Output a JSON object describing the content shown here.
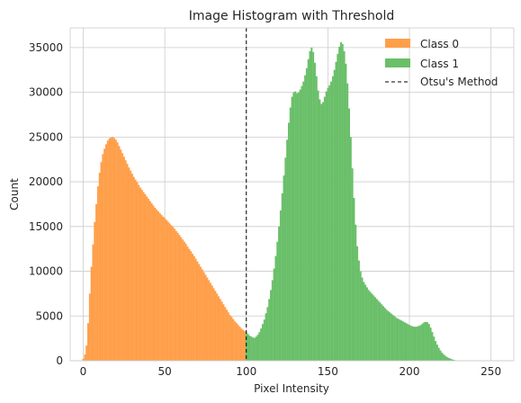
{
  "chart_data": {
    "type": "bar",
    "title": "Image Histogram with Threshold",
    "xlabel": "Pixel Intensity",
    "ylabel": "Count",
    "xlim": [
      -8,
      264
    ],
    "ylim": [
      0,
      37200
    ],
    "xticks": [
      0,
      50,
      100,
      150,
      200,
      250
    ],
    "yticks": [
      0,
      5000,
      10000,
      15000,
      20000,
      25000,
      30000,
      35000
    ],
    "grid": true,
    "legend_position": "top-right",
    "threshold": 100,
    "bin_width": 1,
    "series": [
      {
        "name": "Class 0",
        "color": "#ff9f4a",
        "x_start": 0,
        "values": [
          200,
          700,
          1700,
          4200,
          7500,
          10500,
          13000,
          15500,
          17500,
          19500,
          21000,
          22200,
          23100,
          23700,
          24200,
          24600,
          24850,
          24950,
          25000,
          24900,
          24700,
          24400,
          24000,
          23600,
          23200,
          22800,
          22400,
          22000,
          21600,
          21250,
          20900,
          20550,
          20250,
          19950,
          19650,
          19350,
          19100,
          18850,
          18600,
          18350,
          18100,
          17850,
          17600,
          17350,
          17100,
          16900,
          16700,
          16500,
          16300,
          16100,
          15950,
          15750,
          15550,
          15350,
          15150,
          14950,
          14750,
          14500,
          14300,
          14050,
          13800,
          13550,
          13300,
          13050,
          12750,
          12500,
          12250,
          11950,
          11700,
          11400,
          11100,
          10800,
          10500,
          10200,
          9900,
          9600,
          9300,
          9000,
          8700,
          8400,
          8100,
          7800,
          7500,
          7200,
          6900,
          6600,
          6300,
          6000,
          5700,
          5400,
          5100,
          4900,
          4650,
          4400,
          4200,
          4000,
          3800,
          3600,
          3450,
          3300
        ]
      },
      {
        "name": "Class 1",
        "color": "#6abf69",
        "x_start": 100,
        "values": [
          3150,
          3000,
          2800,
          2700,
          2600,
          2550,
          2700,
          2900,
          3200,
          3600,
          4100,
          4600,
          5300,
          6000,
          6900,
          7900,
          9000,
          10300,
          11700,
          13300,
          15000,
          16800,
          18700,
          20700,
          22700,
          24700,
          26600,
          28300,
          29500,
          30000,
          30100,
          29900,
          30000,
          30300,
          30700,
          31200,
          31900,
          32700,
          33700,
          34600,
          35000,
          34500,
          33300,
          31800,
          30200,
          29200,
          28700,
          28900,
          29500,
          30100,
          30500,
          30800,
          31200,
          31800,
          32500,
          33400,
          34300,
          35100,
          35600,
          35400,
          34600,
          33200,
          31000,
          28200,
          25000,
          21500,
          18200,
          15200,
          12800,
          11200,
          10000,
          9300,
          8800,
          8500,
          8200,
          7900,
          7700,
          7500,
          7300,
          7100,
          6900,
          6700,
          6500,
          6300,
          6100,
          5900,
          5700,
          5550,
          5400,
          5250,
          5100,
          4950,
          4800,
          4700,
          4600,
          4500,
          4400,
          4300,
          4200,
          4100,
          4000,
          3900,
          3850,
          3800,
          3800,
          3850,
          3900,
          4000,
          4150,
          4300,
          4350,
          4300,
          4100,
          3700,
          3200,
          2700,
          2200,
          1800,
          1450,
          1150,
          900,
          700,
          550,
          420,
          320,
          240,
          170,
          110,
          60,
          30,
          15,
          5
        ]
      },
      {
        "name": "Otsu's Method",
        "color": "#000000",
        "style": "dashed",
        "x": 100
      }
    ]
  }
}
